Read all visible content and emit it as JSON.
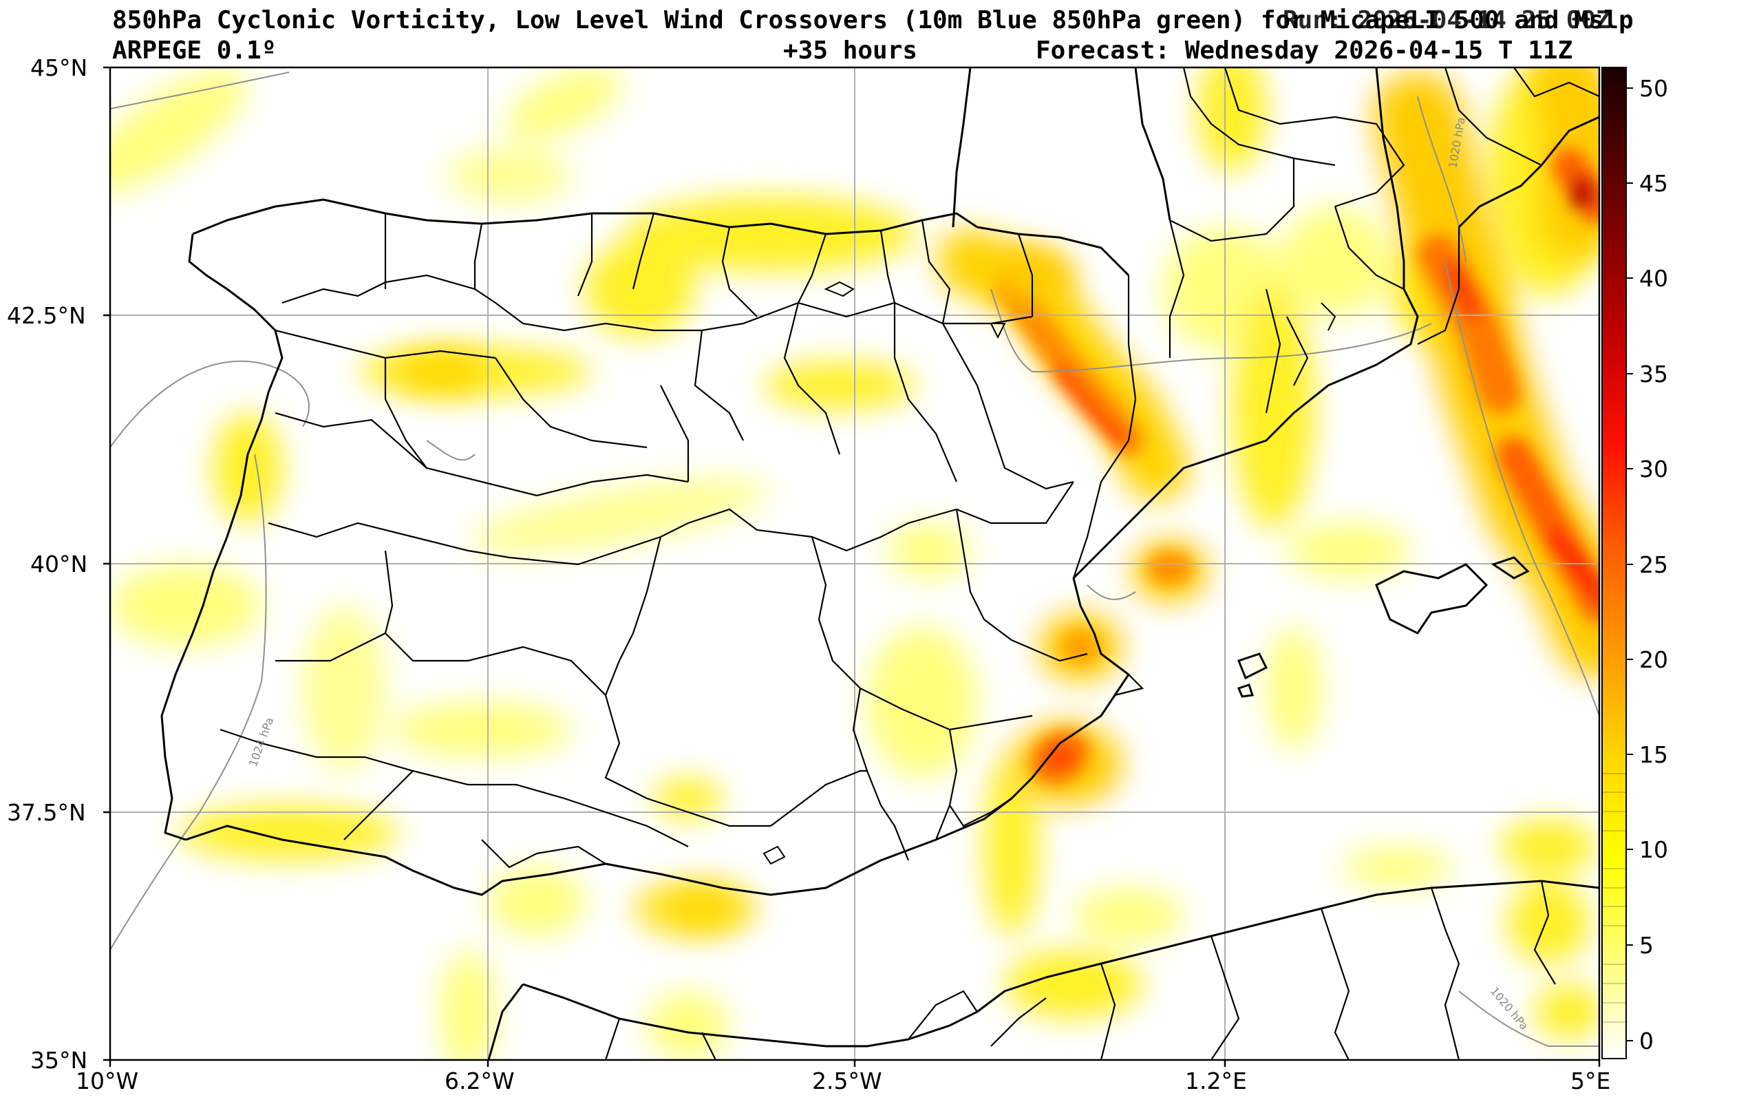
{
  "header": {
    "title_line1": "850hPa Cyclonic Vorticity, Low Level Wind Crossovers (10m Blue 850hPa green) for MicapeLI 500 and Mslp",
    "run_overlay": "Run: 2026-04-14 25 00Z",
    "model": "ARPEGE 0.1º",
    "lead_time": "+35 hours",
    "forecast_valid": "Forecast: Wednesday 2026-04-15 T 11Z"
  },
  "map": {
    "lat_labels": [
      "45°N",
      "42.5°N",
      "40°N",
      "37.5°N",
      "35°N"
    ],
    "lon_labels": [
      "10°W",
      "6.2°W",
      "2.5°W",
      "1.2°E",
      "5°E"
    ],
    "isobar_labels": [
      "1024 hPa",
      "1020 hPa",
      "1020 hPa"
    ],
    "fill_colors": [
      "#ffff66",
      "#ffe000",
      "#ffb000",
      "#ff6a00",
      "#ff2a00",
      "#b00000",
      "#200000"
    ]
  },
  "colorbar": {
    "ticks": [
      "50",
      "45",
      "40",
      "35",
      "30",
      "25",
      "20",
      "15",
      "10",
      "5",
      "0"
    ],
    "min": 0,
    "max": 51,
    "gradient_colors": [
      "#ffffff",
      "#ffff99",
      "#ffff00",
      "#ffd000",
      "#ffa000",
      "#ff6000",
      "#ff1000",
      "#c00000",
      "#700000",
      "#200000"
    ]
  }
}
